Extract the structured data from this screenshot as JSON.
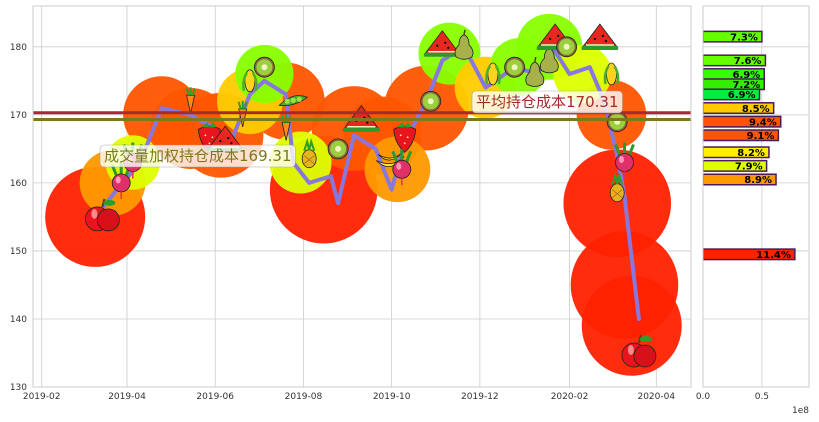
{
  "chart_data": [
    {
      "type": "line",
      "title": "",
      "xlabel": "",
      "ylabel": "",
      "x_ticks": [
        "2019-02",
        "2019-04",
        "2019-06",
        "2019-08",
        "2019-10",
        "2019-12",
        "2020-02",
        "2020-04"
      ],
      "y_ticks": [
        "130",
        "140",
        "150",
        "160",
        "170",
        "180"
      ],
      "xlim": [
        "2019-01-26",
        "2020-04-25"
      ],
      "ylim": [
        130,
        186
      ],
      "grid": true,
      "colors": {
        "price_line": "#8877dd",
        "avg_cost_line": "#a52a2a",
        "vwap_cost_line": "#7a7a1a",
        "bubble_colors": [
          "#ff2200",
          "#ff5500",
          "#ff9900",
          "#ffcc00",
          "#ddff00",
          "#88ff00"
        ]
      },
      "series": [
        {
          "values": [
            {
              "x": "2019-03-10",
              "y": 155
            },
            {
              "x": "2019-03-25",
              "y": 159
            },
            {
              "x": "2019-04-10",
              "y": 163
            },
            {
              "x": "2019-04-25",
              "y": 171
            },
            {
              "x": "2019-05-15",
              "y": 170
            },
            {
              "x": "2019-06-01",
              "y": 168
            },
            {
              "x": "2019-06-10",
              "y": 165
            },
            {
              "x": "2019-06-25",
              "y": 173
            },
            {
              "x": "2019-07-05",
              "y": 175
            },
            {
              "x": "2019-07-20",
              "y": 173
            },
            {
              "x": "2019-07-25",
              "y": 163
            },
            {
              "x": "2019-08-05",
              "y": 160
            },
            {
              "x": "2019-08-20",
              "y": 161
            },
            {
              "x": "2019-08-25",
              "y": 157
            },
            {
              "x": "2019-09-05",
              "y": 167
            },
            {
              "x": "2019-09-20",
              "y": 165
            },
            {
              "x": "2019-10-01",
              "y": 159
            },
            {
              "x": "2019-10-10",
              "y": 166
            },
            {
              "x": "2019-10-25",
              "y": 172
            },
            {
              "x": "2019-11-05",
              "y": 178
            },
            {
              "x": "2019-11-20",
              "y": 180
            },
            {
              "x": "2019-12-05",
              "y": 174
            },
            {
              "x": "2019-12-25",
              "y": 177
            },
            {
              "x": "2020-01-10",
              "y": 176
            },
            {
              "x": "2020-01-20",
              "y": 180
            },
            {
              "x": "2020-02-01",
              "y": 176
            },
            {
              "x": "2020-02-15",
              "y": 177
            },
            {
              "x": "2020-02-25",
              "y": 172
            },
            {
              "x": "2020-03-05",
              "y": 164
            },
            {
              "x": "2020-03-10",
              "y": 158
            },
            {
              "x": "2020-03-20",
              "y": 140
            }
          ]
        }
      ],
      "hlines": [
        {
          "label": "平均持仓成本170.31",
          "y": 170.31
        },
        {
          "label": "成交量加权持仓成本169.31",
          "y": 169.31
        }
      ],
      "bubbles": [
        {
          "x": "2019-03-10",
          "y": 155,
          "size": 1.0,
          "level": 0
        },
        {
          "x": "2019-03-22",
          "y": 160,
          "size": 0.55,
          "level": 2
        },
        {
          "x": "2019-04-05",
          "y": 163,
          "size": 0.4,
          "level": 4
        },
        {
          "x": "2019-04-25",
          "y": 170,
          "size": 0.7,
          "level": 1
        },
        {
          "x": "2019-05-15",
          "y": 168,
          "size": 0.75,
          "level": 1
        },
        {
          "x": "2019-06-05",
          "y": 167,
          "size": 0.8,
          "level": 1
        },
        {
          "x": "2019-06-25",
          "y": 172,
          "size": 0.55,
          "level": 3
        },
        {
          "x": "2019-07-05",
          "y": 176,
          "size": 0.45,
          "level": 5
        },
        {
          "x": "2019-07-20",
          "y": 172,
          "size": 0.7,
          "level": 1
        },
        {
          "x": "2019-07-30",
          "y": 163,
          "size": 0.5,
          "level": 4
        },
        {
          "x": "2019-08-15",
          "y": 159,
          "size": 1.1,
          "level": 0
        },
        {
          "x": "2019-09-05",
          "y": 168,
          "size": 0.8,
          "level": 1
        },
        {
          "x": "2019-09-25",
          "y": 167,
          "size": 0.7,
          "level": 1
        },
        {
          "x": "2019-10-05",
          "y": 162,
          "size": 0.55,
          "level": 2
        },
        {
          "x": "2019-10-25",
          "y": 171,
          "size": 0.8,
          "level": 1
        },
        {
          "x": "2019-11-10",
          "y": 179,
          "size": 0.5,
          "level": 5
        },
        {
          "x": "2019-12-05",
          "y": 174,
          "size": 0.5,
          "level": 3
        },
        {
          "x": "2019-12-28",
          "y": 177,
          "size": 0.45,
          "level": 5
        },
        {
          "x": "2020-01-18",
          "y": 180,
          "size": 0.55,
          "level": 5
        },
        {
          "x": "2020-02-10",
          "y": 176,
          "size": 0.45,
          "level": 4
        },
        {
          "x": "2020-03-01",
          "y": 170,
          "size": 0.6,
          "level": 1
        },
        {
          "x": "2020-03-05",
          "y": 157,
          "size": 1.1,
          "level": 0
        },
        {
          "x": "2020-03-10",
          "y": 145,
          "size": 1.1,
          "level": 0
        },
        {
          "x": "2020-03-15",
          "y": 139,
          "size": 1.0,
          "level": 0
        }
      ],
      "fruits": [
        {
          "x": "2019-03-15",
          "y": 155,
          "kind": "apple"
        },
        {
          "x": "2019-03-28",
          "y": 160,
          "kind": "radish"
        },
        {
          "x": "2019-04-05",
          "y": 163,
          "kind": "radish"
        },
        {
          "x": "2019-05-15",
          "y": 172,
          "kind": "carrot"
        },
        {
          "x": "2019-05-28",
          "y": 167,
          "kind": "strawberry"
        },
        {
          "x": "2019-06-08",
          "y": 166,
          "kind": "watermelon"
        },
        {
          "x": "2019-06-20",
          "y": 170,
          "kind": "carrot"
        },
        {
          "x": "2019-06-25",
          "y": 175,
          "kind": "corn"
        },
        {
          "x": "2019-07-05",
          "y": 177,
          "kind": "kiwi"
        },
        {
          "x": "2019-07-25",
          "y": 172,
          "kind": "peas"
        },
        {
          "x": "2019-07-20",
          "y": 168,
          "kind": "carrot"
        },
        {
          "x": "2019-08-05",
          "y": 164,
          "kind": "pineapple"
        },
        {
          "x": "2019-08-25",
          "y": 165,
          "kind": "kiwi"
        },
        {
          "x": "2019-09-10",
          "y": 169,
          "kind": "watermelon"
        },
        {
          "x": "2019-09-30",
          "y": 163,
          "kind": "banana"
        },
        {
          "x": "2019-10-10",
          "y": 167,
          "kind": "strawberry"
        },
        {
          "x": "2019-10-08",
          "y": 162,
          "kind": "radish"
        },
        {
          "x": "2019-10-28",
          "y": 172,
          "kind": "kiwi"
        },
        {
          "x": "2019-11-05",
          "y": 180,
          "kind": "watermelon"
        },
        {
          "x": "2019-11-20",
          "y": 180,
          "kind": "pear"
        },
        {
          "x": "2019-12-10",
          "y": 176,
          "kind": "corn"
        },
        {
          "x": "2019-12-25",
          "y": 177,
          "kind": "kiwi"
        },
        {
          "x": "2020-01-08",
          "y": 176,
          "kind": "pear"
        },
        {
          "x": "2020-01-18",
          "y": 178,
          "kind": "pear"
        },
        {
          "x": "2020-01-22",
          "y": 181,
          "kind": "watermelon"
        },
        {
          "x": "2020-01-30",
          "y": 180,
          "kind": "kiwi"
        },
        {
          "x": "2020-02-22",
          "y": 181,
          "kind": "watermelon"
        },
        {
          "x": "2020-03-01",
          "y": 176,
          "kind": "corn"
        },
        {
          "x": "2020-03-05",
          "y": 169,
          "kind": "kiwi"
        },
        {
          "x": "2020-03-10",
          "y": 163,
          "kind": "radish"
        },
        {
          "x": "2020-03-05",
          "y": 159,
          "kind": "pineapple"
        },
        {
          "x": "2020-03-20",
          "y": 135,
          "kind": "apple"
        }
      ]
    },
    {
      "type": "bar",
      "orientation": "horizontal",
      "x_ticks": [
        "0.0",
        "0.5"
      ],
      "x_multiplier": "1e8",
      "xlim": [
        0,
        0.9
      ],
      "ylim": [
        130,
        186
      ],
      "bars": [
        {
          "y": 181.5,
          "value": 0.5,
          "label": "7.3%",
          "color": "#66ff00"
        },
        {
          "y": 178.0,
          "value": 0.53,
          "label": "7.6%",
          "color": "#66ff00"
        },
        {
          "y": 176.0,
          "value": 0.52,
          "label": "6.9%",
          "color": "#33ff00"
        },
        {
          "y": 174.5,
          "value": 0.52,
          "label": "7.2%",
          "color": "#33ee00"
        },
        {
          "y": 173.0,
          "value": 0.48,
          "label": "6.9%",
          "color": "#00ee44"
        },
        {
          "y": 171.0,
          "value": 0.6,
          "label": "8.5%",
          "color": "#ffcc00"
        },
        {
          "y": 169.0,
          "value": 0.66,
          "label": "9.4%",
          "color": "#ff5500"
        },
        {
          "y": 167.0,
          "value": 0.64,
          "label": "9.1%",
          "color": "#ff5500"
        },
        {
          "y": 164.5,
          "value": 0.56,
          "label": "8.2%",
          "color": "#ffee00"
        },
        {
          "y": 162.5,
          "value": 0.54,
          "label": "7.9%",
          "color": "#ddff00"
        },
        {
          "y": 160.5,
          "value": 0.62,
          "label": "8.9%",
          "color": "#ff9900"
        },
        {
          "y": 149.5,
          "value": 0.78,
          "label": "11.4%",
          "color": "#ff2200"
        }
      ]
    }
  ]
}
